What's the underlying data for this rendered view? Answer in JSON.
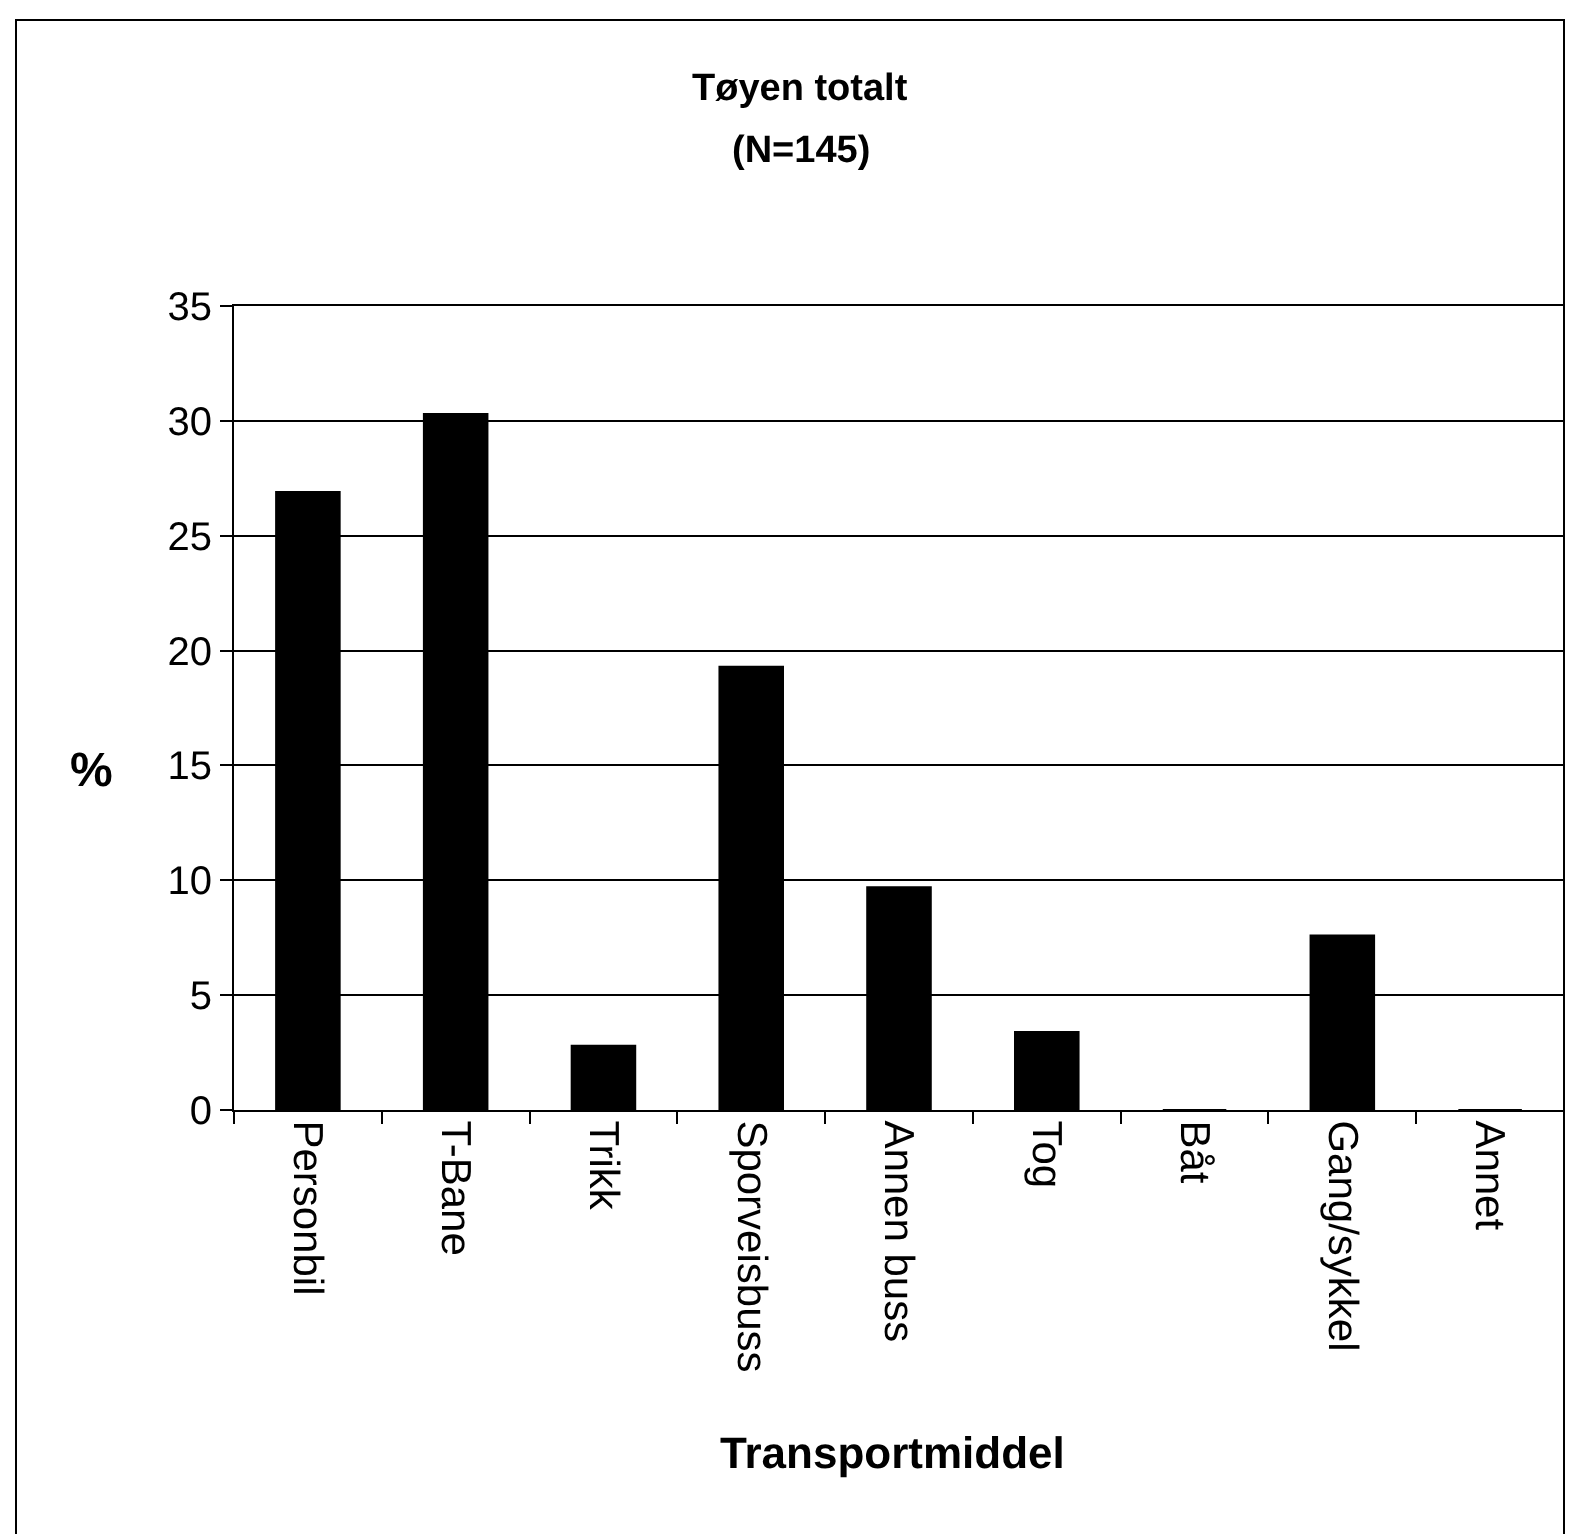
{
  "chart_data": {
    "type": "bar",
    "title": "Tøyen totalt",
    "subtitle": "(N=145)",
    "xlabel": "Transportmiddel",
    "ylabel": "%",
    "categories": [
      "Personbil",
      "T-Bane",
      "Trikk",
      "Sporveisbuss",
      "Annen buss",
      "Tog",
      "Båt",
      "Gang/sykkel",
      "Annet"
    ],
    "values": [
      26.9,
      30.3,
      2.8,
      19.3,
      9.7,
      3.4,
      0,
      7.6,
      0
    ],
    "color": "#000000",
    "ylim": [
      0,
      35
    ],
    "yticks": [
      0,
      5,
      10,
      15,
      20,
      25,
      30,
      35
    ],
    "grid": "y"
  }
}
